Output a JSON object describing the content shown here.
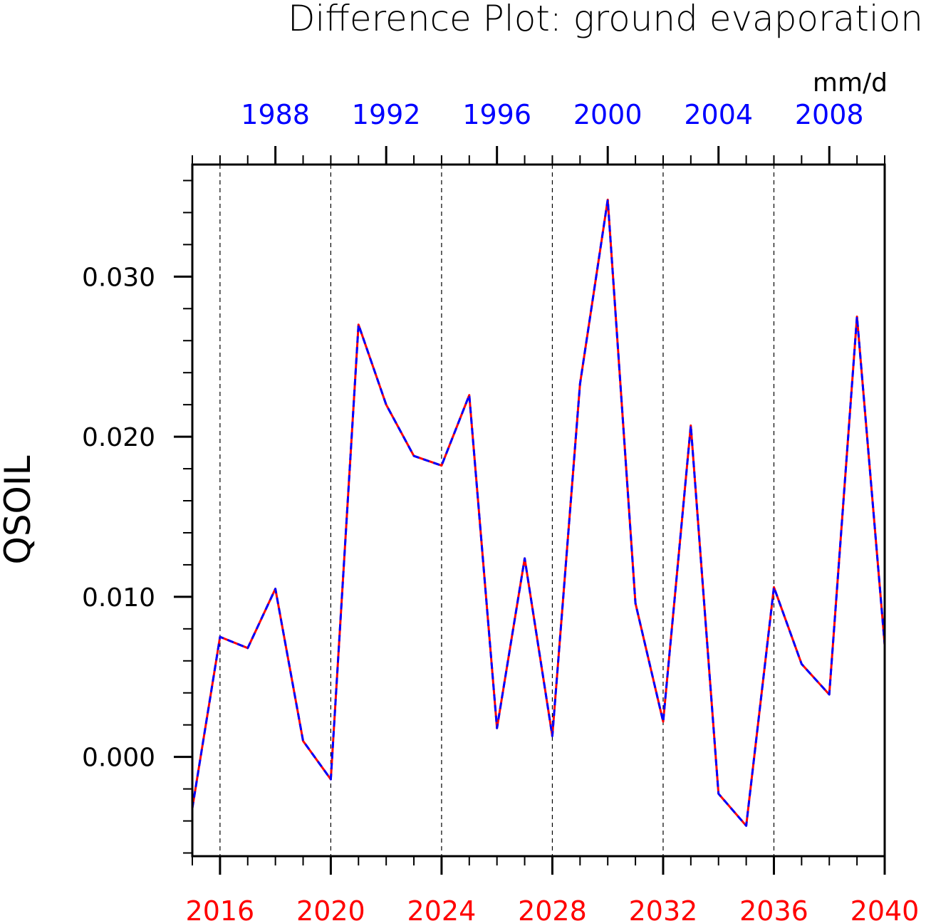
{
  "chart_data": {
    "type": "line",
    "title": "Difference Plot: ground evaporation",
    "units": "mm/d",
    "ylabel": "QSOIL",
    "xlim": [
      2015,
      2040
    ],
    "ylim": [
      -0.0062,
      0.037
    ],
    "y_ticks": [
      {
        "value": 0.0,
        "label": "0.000"
      },
      {
        "value": 0.01,
        "label": "0.010"
      },
      {
        "value": 0.02,
        "label": "0.020"
      },
      {
        "value": 0.03,
        "label": "0.030"
      }
    ],
    "x_ticks_bottom": [
      {
        "value": 2016,
        "label": "2016"
      },
      {
        "value": 2020,
        "label": "2020"
      },
      {
        "value": 2024,
        "label": "2024"
      },
      {
        "value": 2028,
        "label": "2028"
      },
      {
        "value": 2032,
        "label": "2032"
      },
      {
        "value": 2036,
        "label": "2036"
      },
      {
        "value": 2040,
        "label": "2040"
      }
    ],
    "x_ticks_top": [
      {
        "value": 2018,
        "label": "1988"
      },
      {
        "value": 2022,
        "label": "1992"
      },
      {
        "value": 2026,
        "label": "1996"
      },
      {
        "value": 2030,
        "label": "2000"
      },
      {
        "value": 2034,
        "label": "2004"
      },
      {
        "value": 2038,
        "label": "2008"
      }
    ],
    "bottom_axis_color": "#ff0000",
    "top_axis_color": "#0000ff",
    "grid_verticals": [
      2016,
      2020,
      2024,
      2028,
      2032,
      2036
    ],
    "x": [
      2015,
      2016,
      2017,
      2018,
      2019,
      2020,
      2021,
      2022,
      2023,
      2024,
      2025,
      2026,
      2027,
      2028,
      2029,
      2030,
      2031,
      2032,
      2033,
      2034,
      2035,
      2036,
      2037,
      2038,
      2039,
      2040
    ],
    "series": [
      {
        "color": "#ff0000",
        "dash": "solid",
        "values": [
          -0.0032,
          0.0075,
          0.0068,
          0.0105,
          0.001,
          -0.0014,
          0.027,
          0.022,
          0.0188,
          0.0182,
          0.0226,
          0.0018,
          0.0124,
          0.0013,
          0.0233,
          0.0348,
          0.0096,
          0.0022,
          0.0207,
          -0.0023,
          -0.0043,
          0.0106,
          0.0058,
          0.0039,
          0.0275,
          0.007
        ]
      },
      {
        "color": "#0000ff",
        "dash": "dashed",
        "values": [
          -0.0032,
          0.0075,
          0.0068,
          0.0105,
          0.001,
          -0.0014,
          0.027,
          0.022,
          0.0188,
          0.0182,
          0.0226,
          0.0018,
          0.0124,
          0.0013,
          0.0233,
          0.0348,
          0.0096,
          0.0022,
          0.0207,
          -0.0023,
          -0.0043,
          0.0106,
          0.0058,
          0.0039,
          0.0275,
          0.007
        ]
      }
    ]
  }
}
